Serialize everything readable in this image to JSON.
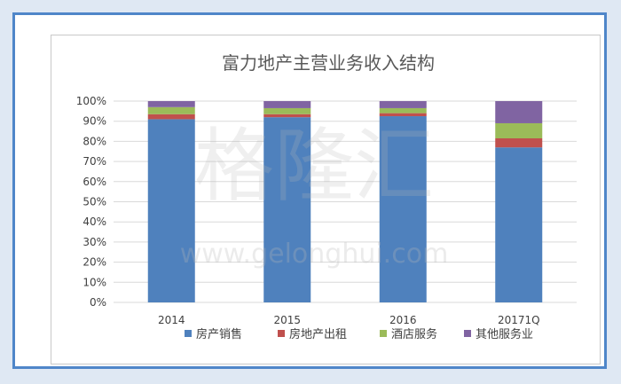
{
  "watermark": {
    "main": "格隆汇",
    "url": "www.gelonghui.com"
  },
  "chart_data": {
    "type": "bar",
    "stacked": true,
    "percent": true,
    "title": "富力地产主营业务收入结构",
    "categories": [
      "2014",
      "2015",
      "2016",
      "20171Q"
    ],
    "y_ticks": [
      "0%",
      "10%",
      "20%",
      "30%",
      "40%",
      "50%",
      "60%",
      "70%",
      "80%",
      "90%",
      "100%"
    ],
    "ylim": [
      0,
      100
    ],
    "grid": true,
    "legend_position": "bottom",
    "series": [
      {
        "name": "房产销售",
        "color": "#4f81bd",
        "values": [
          91,
          92,
          92.5,
          77
        ]
      },
      {
        "name": "房地产出租",
        "color": "#c0504d",
        "values": [
          2.5,
          1.5,
          1.5,
          4.5
        ]
      },
      {
        "name": "酒店服务",
        "color": "#9bbb59",
        "values": [
          3.5,
          3,
          2.5,
          7.5
        ]
      },
      {
        "name": "其他服务业",
        "color": "#8064a2",
        "values": [
          3,
          3.5,
          3.5,
          11
        ]
      }
    ]
  }
}
